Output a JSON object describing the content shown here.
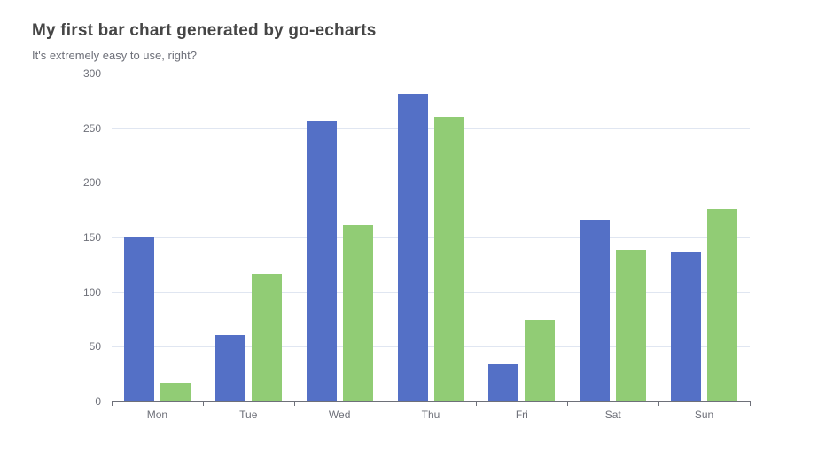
{
  "chart_data": {
    "type": "bar",
    "title": "My first bar chart generated by go-echarts",
    "subtitle": "It's extremely easy to use, right?",
    "categories": [
      "Mon",
      "Tue",
      "Wed",
      "Thu",
      "Fri",
      "Sat",
      "Sun"
    ],
    "series": [
      {
        "name": "blue",
        "color": "#5470C6",
        "values": [
          150,
          61,
          256,
          281,
          34,
          166,
          137
        ]
      },
      {
        "name": "green",
        "color": "#91CC75",
        "values": [
          17,
          117,
          161,
          260,
          75,
          139,
          176
        ]
      }
    ],
    "xlabel": "",
    "ylabel": "",
    "ylim": [
      0,
      300
    ],
    "ytick_interval": 50,
    "ytick_labels": [
      "0",
      "50",
      "100",
      "150",
      "200",
      "250",
      "300"
    ],
    "grid": true,
    "legend": "none",
    "colors": {
      "title": "#464646",
      "subtitle": "#6E7079",
      "axis_label": "#6E7079",
      "axis_line": "#6E7079",
      "grid_line": "#E0E6F1",
      "background": "#FFFFFF"
    }
  }
}
